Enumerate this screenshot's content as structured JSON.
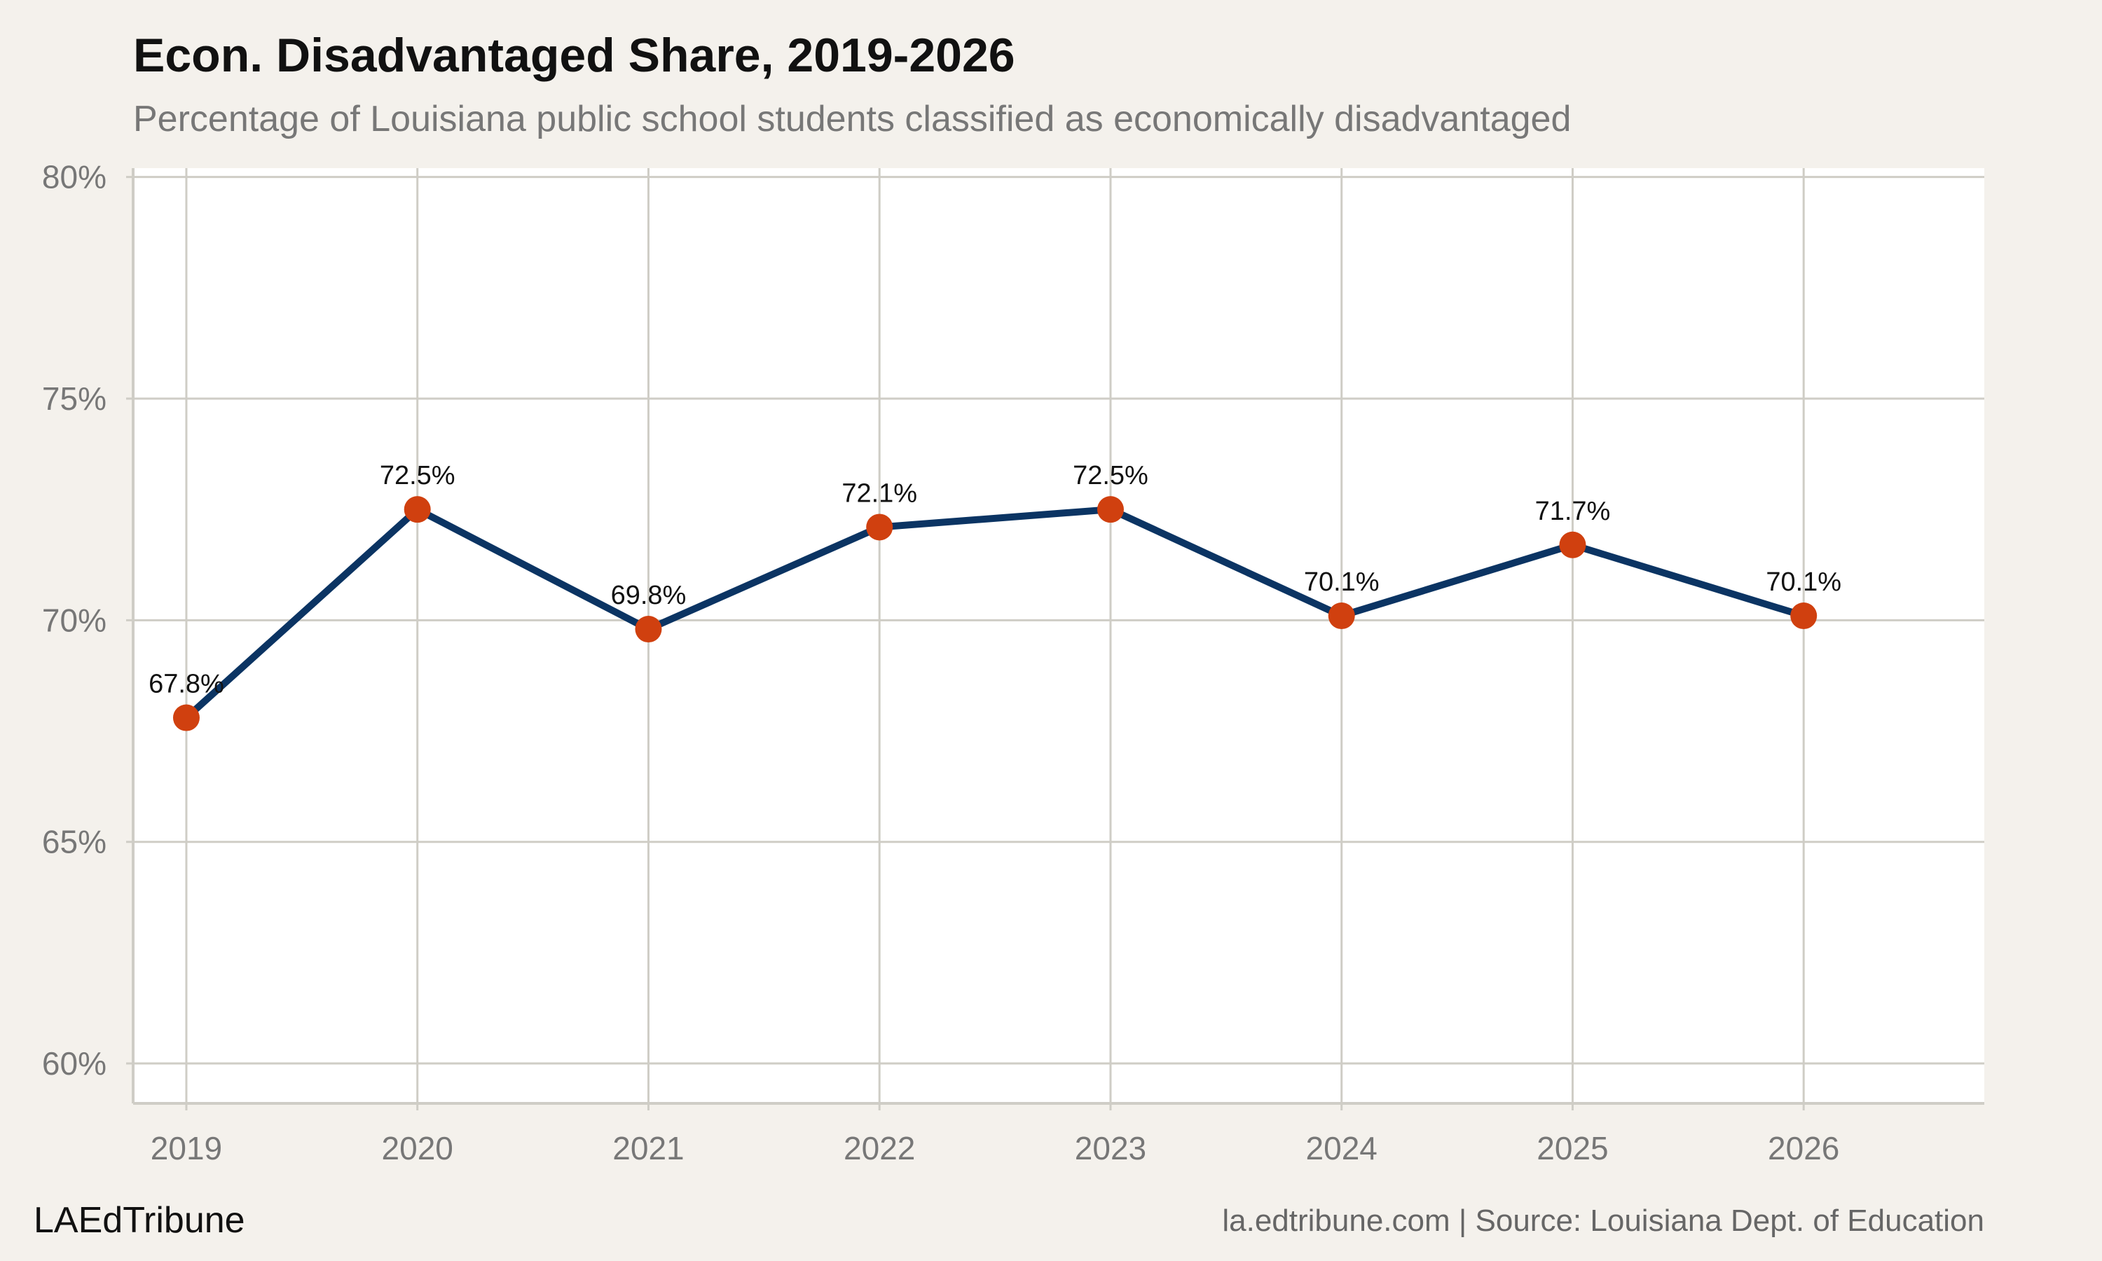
{
  "header": {
    "title": "Econ. Disadvantaged Share, 2019-2026",
    "subtitle": "Percentage of Louisiana public school students classified as economically disadvantaged"
  },
  "footer": {
    "brand": "LAEdTribune",
    "source": "la.edtribune.com | Source: Louisiana Dept. of Education"
  },
  "colors": {
    "background": "#f4f1ec",
    "plot_background": "#ffffff",
    "line": "#0b3463",
    "marker": "#d0400f",
    "grid": "#cfcdc6"
  },
  "chart_data": {
    "type": "line",
    "title": "Econ. Disadvantaged Share, 2019-2026",
    "subtitle": "Percentage of Louisiana public school students classified as economically disadvantaged",
    "xlabel": "",
    "ylabel": "",
    "categories": [
      "2019",
      "2020",
      "2021",
      "2022",
      "2023",
      "2024",
      "2025",
      "2026"
    ],
    "series": [
      {
        "values": [
          67.8,
          72.5,
          69.8,
          72.1,
          72.5,
          70.1,
          71.7,
          70.1
        ],
        "data_labels": [
          "67.8%",
          "72.5%",
          "69.8%",
          "72.1%",
          "72.5%",
          "70.1%",
          "71.7%",
          "70.1%"
        ]
      }
    ],
    "ylim": [
      59.1,
      80.2
    ],
    "yticks": [
      60,
      65,
      70,
      75,
      80
    ],
    "ytick_labels": [
      "60%",
      "65%",
      "70%",
      "75%",
      "80%"
    ],
    "grid": true,
    "legend": "none"
  }
}
